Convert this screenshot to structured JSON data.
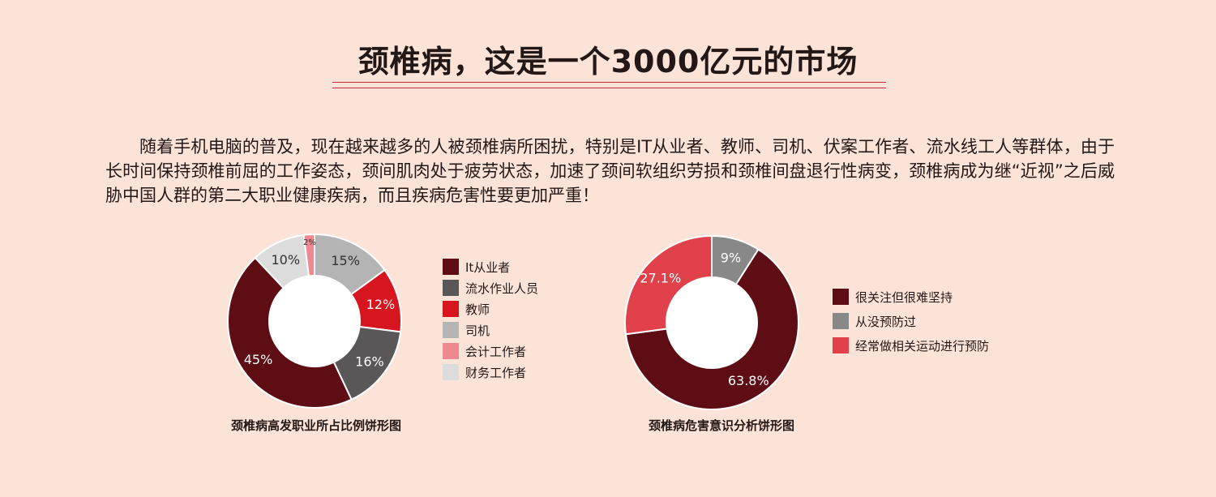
{
  "page": {
    "title": "颈椎病，这是一个3000亿元的市场",
    "intro": "随着手机电脑的普及，现在越来越多的人被颈椎病所困扰，特别是IT从业者、教师、司机、伏案工作者、流水线工人等群体，由于长时间保持颈椎前屈的工作姿态，颈间肌肉处于疲劳状态，加速了颈间软组织劳损和颈椎间盘退行性病变，颈椎病成为继“近视”之后威胁中国人群的第二大职业健康疾病，而且疾病危害性要更加严重！"
  },
  "chart_data": [
    {
      "type": "pie",
      "donut": true,
      "title": "颈椎病高发职业所占比例饼形图",
      "legend_position": "right",
      "slices": [
        {
          "label": "It从业者",
          "value": 45,
          "value_label": "45%",
          "color": "#5f0d14"
        },
        {
          "label": "流水作业人员",
          "value": 16,
          "value_label": "16%",
          "color": "#595757"
        },
        {
          "label": "教师",
          "value": 12,
          "value_label": "12%",
          "color": "#d7151f"
        },
        {
          "label": "司机",
          "value": 15,
          "value_label": "15%",
          "color": "#b5b4b4"
        },
        {
          "label": "会计工作者",
          "value": 2,
          "value_label": "2%",
          "color": "#ee8891"
        },
        {
          "label": "财务工作者",
          "value": 10,
          "value_label": "10%",
          "color": "#dcdcdd"
        }
      ]
    },
    {
      "type": "pie",
      "donut": true,
      "title": "颈椎病危害意识分析饼形图",
      "legend_position": "right",
      "slices": [
        {
          "label": "很关注但很难坚持",
          "value": 63.8,
          "value_label": "63.8%",
          "color": "#5f0d14"
        },
        {
          "label": "从没预防过",
          "value": 9,
          "value_label": "9%",
          "color": "#888888"
        },
        {
          "label": "经常做相关运动进行预防",
          "value": 27.1,
          "value_label": "27.1%",
          "color": "#e0414a"
        }
      ]
    }
  ]
}
